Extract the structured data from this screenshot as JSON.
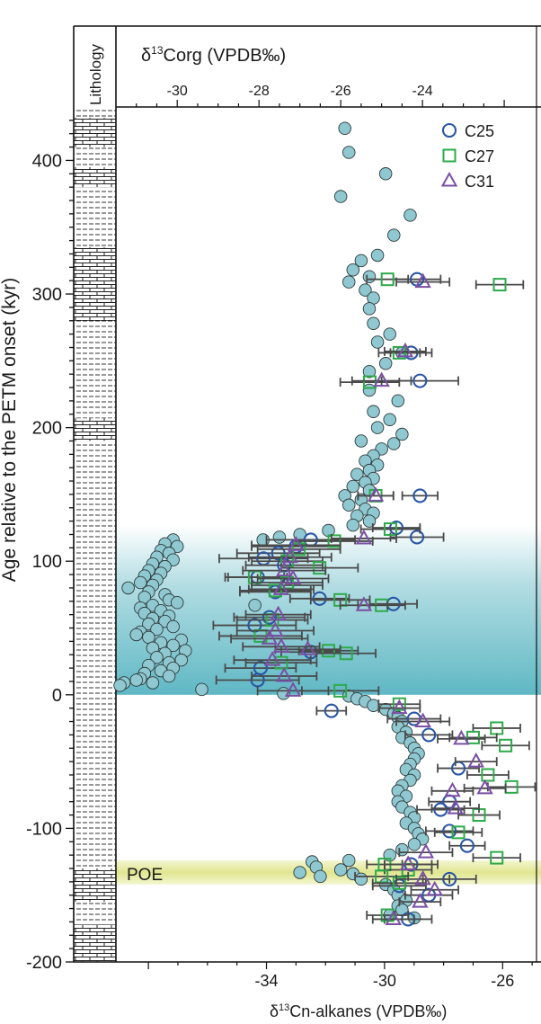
{
  "chart_data": {
    "type": "scatter",
    "left_axis": {
      "label": "Age relative to the PETM onset (kyr)",
      "range": [
        -200,
        440
      ],
      "ticks": [
        "-200",
        "-100",
        "0",
        "100",
        "200",
        "300",
        "400"
      ]
    },
    "lithology_label": "Lithology",
    "top_axis": {
      "label_prefix": "δ",
      "label_sup": "13",
      "label_rest": "Corg (VPDB‰)",
      "range": [
        -31.5,
        -21.1
      ],
      "ticks": [
        "-30",
        "-28",
        "-26",
        "-24"
      ]
    },
    "bottom_axis": {
      "label_prefix": "δ",
      "label_sup": "13",
      "label_sub": "Cn-alkanes",
      "label_rest": " (VPDB‰)",
      "range": [
        -39.1,
        -24.7
      ],
      "ticks": [
        "-34",
        "-30",
        "-26"
      ]
    },
    "annotation": "POE",
    "bands": [
      {
        "kind": "petm",
        "from": 0,
        "to": 127,
        "color": "#5fb8c4"
      },
      {
        "kind": "poe",
        "from": -142,
        "to": -124,
        "color": "#dfe58a"
      }
    ],
    "legend": {
      "position": "top-right",
      "items": [
        {
          "label": "C25",
          "marker": "circle",
          "color": "#2a56a5"
        },
        {
          "label": "C27",
          "marker": "square",
          "color": "#2eaa4a"
        },
        {
          "label": "C31",
          "marker": "triangle",
          "color": "#7b4fa3"
        }
      ]
    },
    "corg": {
      "color": "#8fc8d0",
      "points": [
        [
          -25.9,
          424
        ],
        [
          -25.8,
          406
        ],
        [
          -24.9,
          390
        ],
        [
          -26,
          373
        ],
        [
          -24.3,
          359
        ],
        [
          -24.7,
          344
        ],
        [
          -25.1,
          329
        ],
        [
          -25.5,
          325
        ],
        [
          -25.7,
          318
        ],
        [
          -25.3,
          313
        ],
        [
          -25.8,
          309
        ],
        [
          -25.4,
          303
        ],
        [
          -25.2,
          297
        ],
        [
          -25.3,
          289
        ],
        [
          -25.2,
          278
        ],
        [
          -24.8,
          270
        ],
        [
          -25.1,
          264
        ],
        [
          -24.5,
          256
        ],
        [
          -24.9,
          248
        ],
        [
          -25.3,
          242
        ],
        [
          -25.3,
          228
        ],
        [
          -24.6,
          220
        ],
        [
          -25.2,
          212
        ],
        [
          -24.8,
          206
        ],
        [
          -25.1,
          200
        ],
        [
          -24.5,
          195
        ],
        [
          -25.5,
          190
        ],
        [
          -24.7,
          188
        ],
        [
          -25,
          184
        ],
        [
          -25.2,
          179
        ],
        [
          -25.4,
          175
        ],
        [
          -25.1,
          172
        ],
        [
          -25.3,
          168
        ],
        [
          -25.6,
          165
        ],
        [
          -25.2,
          162
        ],
        [
          -25.4,
          159
        ],
        [
          -25.7,
          156
        ],
        [
          -25.3,
          153
        ],
        [
          -25.9,
          149
        ],
        [
          -25.5,
          146
        ],
        [
          -25.8,
          142
        ],
        [
          -25.4,
          139
        ],
        [
          -25.2,
          136
        ],
        [
          -25.6,
          134
        ],
        [
          -25.3,
          130
        ],
        [
          -25.7,
          127
        ],
        [
          -26.3,
          123
        ],
        [
          -27,
          120
        ],
        [
          -27.5,
          118
        ],
        [
          -27.9,
          116
        ],
        [
          -30.1,
          116
        ],
        [
          -30.3,
          113
        ],
        [
          -30,
          111
        ],
        [
          -30.4,
          108
        ],
        [
          -30.2,
          106
        ],
        [
          -30.5,
          103
        ],
        [
          -30.1,
          101
        ],
        [
          -30.6,
          98
        ],
        [
          -30.3,
          96
        ],
        [
          -30.7,
          93
        ],
        [
          -30.4,
          91
        ],
        [
          -30.8,
          89
        ],
        [
          -30.5,
          86
        ],
        [
          -30.9,
          84
        ],
        [
          -30.6,
          82
        ],
        [
          -31.2,
          80
        ],
        [
          -30.7,
          77
        ],
        [
          -30.3,
          75
        ],
        [
          -30.8,
          73
        ],
        [
          -30.2,
          71
        ],
        [
          -30,
          69
        ],
        [
          -30.6,
          67
        ],
        [
          -28.1,
          67
        ],
        [
          -30.9,
          65
        ],
        [
          -30.4,
          63
        ],
        [
          -30.8,
          61
        ],
        [
          -30.2,
          59
        ],
        [
          -30.6,
          57
        ],
        [
          -30.3,
          55
        ],
        [
          -30.7,
          53
        ],
        [
          -30.1,
          51
        ],
        [
          -30.5,
          49
        ],
        [
          -30.9,
          47
        ],
        [
          -31,
          45
        ],
        [
          -30.7,
          43
        ],
        [
          -29.9,
          41
        ],
        [
          -30.4,
          39
        ],
        [
          -30.1,
          37
        ],
        [
          -30.6,
          35
        ],
        [
          -29.8,
          33
        ],
        [
          -30.3,
          31
        ],
        [
          -30.5,
          28
        ],
        [
          -29.9,
          26
        ],
        [
          -30.2,
          24
        ],
        [
          -30.7,
          22
        ],
        [
          -30.1,
          20
        ],
        [
          -30.4,
          18
        ],
        [
          -30.8,
          16
        ],
        [
          -30.2,
          14
        ],
        [
          -30.9,
          12
        ],
        [
          -31,
          11
        ],
        [
          -31.3,
          9
        ],
        [
          -30.6,
          9
        ],
        [
          -31.4,
          7
        ],
        [
          -29.4,
          4
        ],
        [
          -27.4,
          1
        ],
        [
          -25.8,
          -1
        ],
        [
          -25.6,
          -3
        ],
        [
          -25.4,
          -5
        ],
        [
          -25.2,
          -8
        ],
        [
          -24.9,
          -11
        ],
        [
          -24.7,
          -14
        ],
        [
          -24.6,
          -17
        ],
        [
          -24.5,
          -20
        ],
        [
          -24.6,
          -24
        ],
        [
          -24.4,
          -28
        ],
        [
          -24.5,
          -32
        ],
        [
          -24.3,
          -36
        ],
        [
          -24.2,
          -40
        ],
        [
          -24.1,
          -44
        ],
        [
          -24.2,
          -48
        ],
        [
          -24.3,
          -52
        ],
        [
          -24.4,
          -56
        ],
        [
          -24.2,
          -60
        ],
        [
          -24.3,
          -64
        ],
        [
          -24.5,
          -68
        ],
        [
          -24.6,
          -72
        ],
        [
          -24.4,
          -76
        ],
        [
          -24.6,
          -80
        ],
        [
          -24.5,
          -84
        ],
        [
          -24.3,
          -88
        ],
        [
          -24.2,
          -92
        ],
        [
          -24.4,
          -96
        ],
        [
          -24.2,
          -100
        ],
        [
          -24.1,
          -104
        ],
        [
          -24,
          -108
        ],
        [
          -24.2,
          -112
        ],
        [
          -24.5,
          -116
        ],
        [
          -24.8,
          -120
        ],
        [
          -25.8,
          -124
        ],
        [
          -26.7,
          -125
        ],
        [
          -26.6,
          -129
        ],
        [
          -26,
          -131
        ],
        [
          -27,
          -133
        ],
        [
          -26.5,
          -136
        ],
        [
          -25.7,
          -134
        ],
        [
          -25.5,
          -138
        ],
        [
          -24.9,
          -142
        ],
        [
          -24.7,
          -146
        ],
        [
          -24.6,
          -150
        ],
        [
          -24.4,
          -154
        ],
        [
          -24.6,
          -158
        ],
        [
          -24.5,
          -161
        ],
        [
          -24.8,
          -165
        ],
        [
          -24.2,
          -167
        ]
      ]
    },
    "series": [
      {
        "name": "C25",
        "marker": "circle",
        "points": [
          [
            -28.9,
            311,
            0.8
          ],
          [
            -28.8,
            235,
            1.3
          ],
          [
            -29.1,
            256,
            0.7
          ],
          [
            -28.8,
            149,
            0.6
          ],
          [
            -29.6,
            125,
            0.8
          ],
          [
            -28.9,
            118,
            0.9
          ],
          [
            -32.5,
            116,
            1.5
          ],
          [
            -33,
            111,
            1.5
          ],
          [
            -33.6,
            106,
            1.4
          ],
          [
            -34.1,
            102,
            1.5
          ],
          [
            -33.4,
            97,
            1.3
          ],
          [
            -34.3,
            88,
            1
          ],
          [
            -33.3,
            82,
            1.2
          ],
          [
            -33.7,
            77,
            1.2
          ],
          [
            -32.2,
            72,
            1
          ],
          [
            -29.7,
            68,
            0.8
          ],
          [
            -33.9,
            58,
            1.2
          ],
          [
            -34.4,
            52,
            1.4
          ],
          [
            -32.5,
            32,
            1
          ],
          [
            -34.2,
            20,
            1.2
          ],
          [
            -34.3,
            11,
            1.4
          ],
          [
            -31.8,
            -12,
            0.5
          ],
          [
            -29,
            -18,
            0.9
          ],
          [
            -28.5,
            -30,
            0.8
          ],
          [
            -27.5,
            -55,
            0.7
          ],
          [
            -27.8,
            -80,
            0.7
          ],
          [
            -28.1,
            -86,
            0.8
          ],
          [
            -27.8,
            -102,
            0.8
          ],
          [
            -27.2,
            -113,
            0.6
          ],
          [
            -29.1,
            -127,
            0.9
          ],
          [
            -27.8,
            -138,
            0.9
          ],
          [
            -29.5,
            -143,
            0.9
          ],
          [
            -28.5,
            -150,
            0.8
          ],
          [
            -29.2,
            -168,
            0.8
          ]
        ]
      },
      {
        "name": "C27",
        "marker": "square",
        "points": [
          [
            -29.9,
            311,
            0.7
          ],
          [
            -26.1,
            307,
            0.8
          ],
          [
            -29.5,
            256,
            0.7
          ],
          [
            -30.5,
            234,
            1
          ],
          [
            -30.3,
            149,
            0.6
          ],
          [
            -29.8,
            124,
            1
          ],
          [
            -31.7,
            115,
            1.3
          ],
          [
            -32.9,
            109,
            1.4
          ],
          [
            -33.3,
            100,
            1.2
          ],
          [
            -32.2,
            95,
            1.3
          ],
          [
            -34.4,
            88,
            1
          ],
          [
            -33.3,
            84,
            1.2
          ],
          [
            -33.7,
            78,
            1.2
          ],
          [
            -31.5,
            71,
            1
          ],
          [
            -30.1,
            67,
            0.8
          ],
          [
            -33.8,
            56,
            1.2
          ],
          [
            -34.2,
            44,
            1.4
          ],
          [
            -31.9,
            33,
            1
          ],
          [
            -31.3,
            31,
            1
          ],
          [
            -33.5,
            24,
            1.2
          ],
          [
            -31.5,
            3,
            1.3
          ],
          [
            -29.5,
            -7,
            0.7
          ],
          [
            -26.2,
            -25,
            0.8
          ],
          [
            -27,
            -32,
            0.8
          ],
          [
            -25.9,
            -38,
            0.8
          ],
          [
            -26.5,
            -60,
            0.7
          ],
          [
            -25.7,
            -69,
            0.8
          ],
          [
            -26.8,
            -90,
            0.7
          ],
          [
            -27.5,
            -103,
            0.8
          ],
          [
            -26.2,
            -122,
            0.8
          ],
          [
            -30,
            -127,
            0.6
          ],
          [
            -29.2,
            -131,
            0.8
          ],
          [
            -30.1,
            -136,
            0.9
          ],
          [
            -29.5,
            -141,
            0.9
          ],
          [
            -29.9,
            -165,
            0.7
          ]
        ]
      },
      {
        "name": "C31",
        "marker": "triangle",
        "points": [
          [
            -28.7,
            309,
            0.9
          ],
          [
            -30.1,
            235,
            1
          ],
          [
            -29.3,
            257,
            0.7
          ],
          [
            -30.3,
            149,
            0.6
          ],
          [
            -30.7,
            117,
            1.1
          ],
          [
            -33,
            112,
            1.5
          ],
          [
            -33.2,
            103,
            1.4
          ],
          [
            -33.4,
            93,
            1.4
          ],
          [
            -33.1,
            87,
            1.2
          ],
          [
            -33.5,
            79,
            1.1
          ],
          [
            -30.7,
            67,
            0.8
          ],
          [
            -33.6,
            60,
            1.1
          ],
          [
            -33.7,
            48,
            1.3
          ],
          [
            -33.9,
            42,
            1.3
          ],
          [
            -32.6,
            34,
            1.1
          ],
          [
            -33.5,
            36,
            1.3
          ],
          [
            -33.8,
            26,
            1.3
          ],
          [
            -33.4,
            14,
            1.1
          ],
          [
            -33.1,
            3,
            1.2
          ],
          [
            -29.5,
            -10,
            0.7
          ],
          [
            -28.7,
            -20,
            0.9
          ],
          [
            -27.4,
            -33,
            0.8
          ],
          [
            -26.9,
            -50,
            0.7
          ],
          [
            -26.6,
            -70,
            0.7
          ],
          [
            -27.7,
            -72,
            0.7
          ],
          [
            -27.6,
            -85,
            0.8
          ],
          [
            -28.6,
            -118,
            0.9
          ],
          [
            -29.2,
            -127,
            0.8
          ],
          [
            -28.7,
            -138,
            0.9
          ],
          [
            -28.3,
            -146,
            0.8
          ],
          [
            -28.8,
            -155,
            0.7
          ],
          [
            -29.7,
            -168,
            0.7
          ]
        ]
      }
    ]
  }
}
